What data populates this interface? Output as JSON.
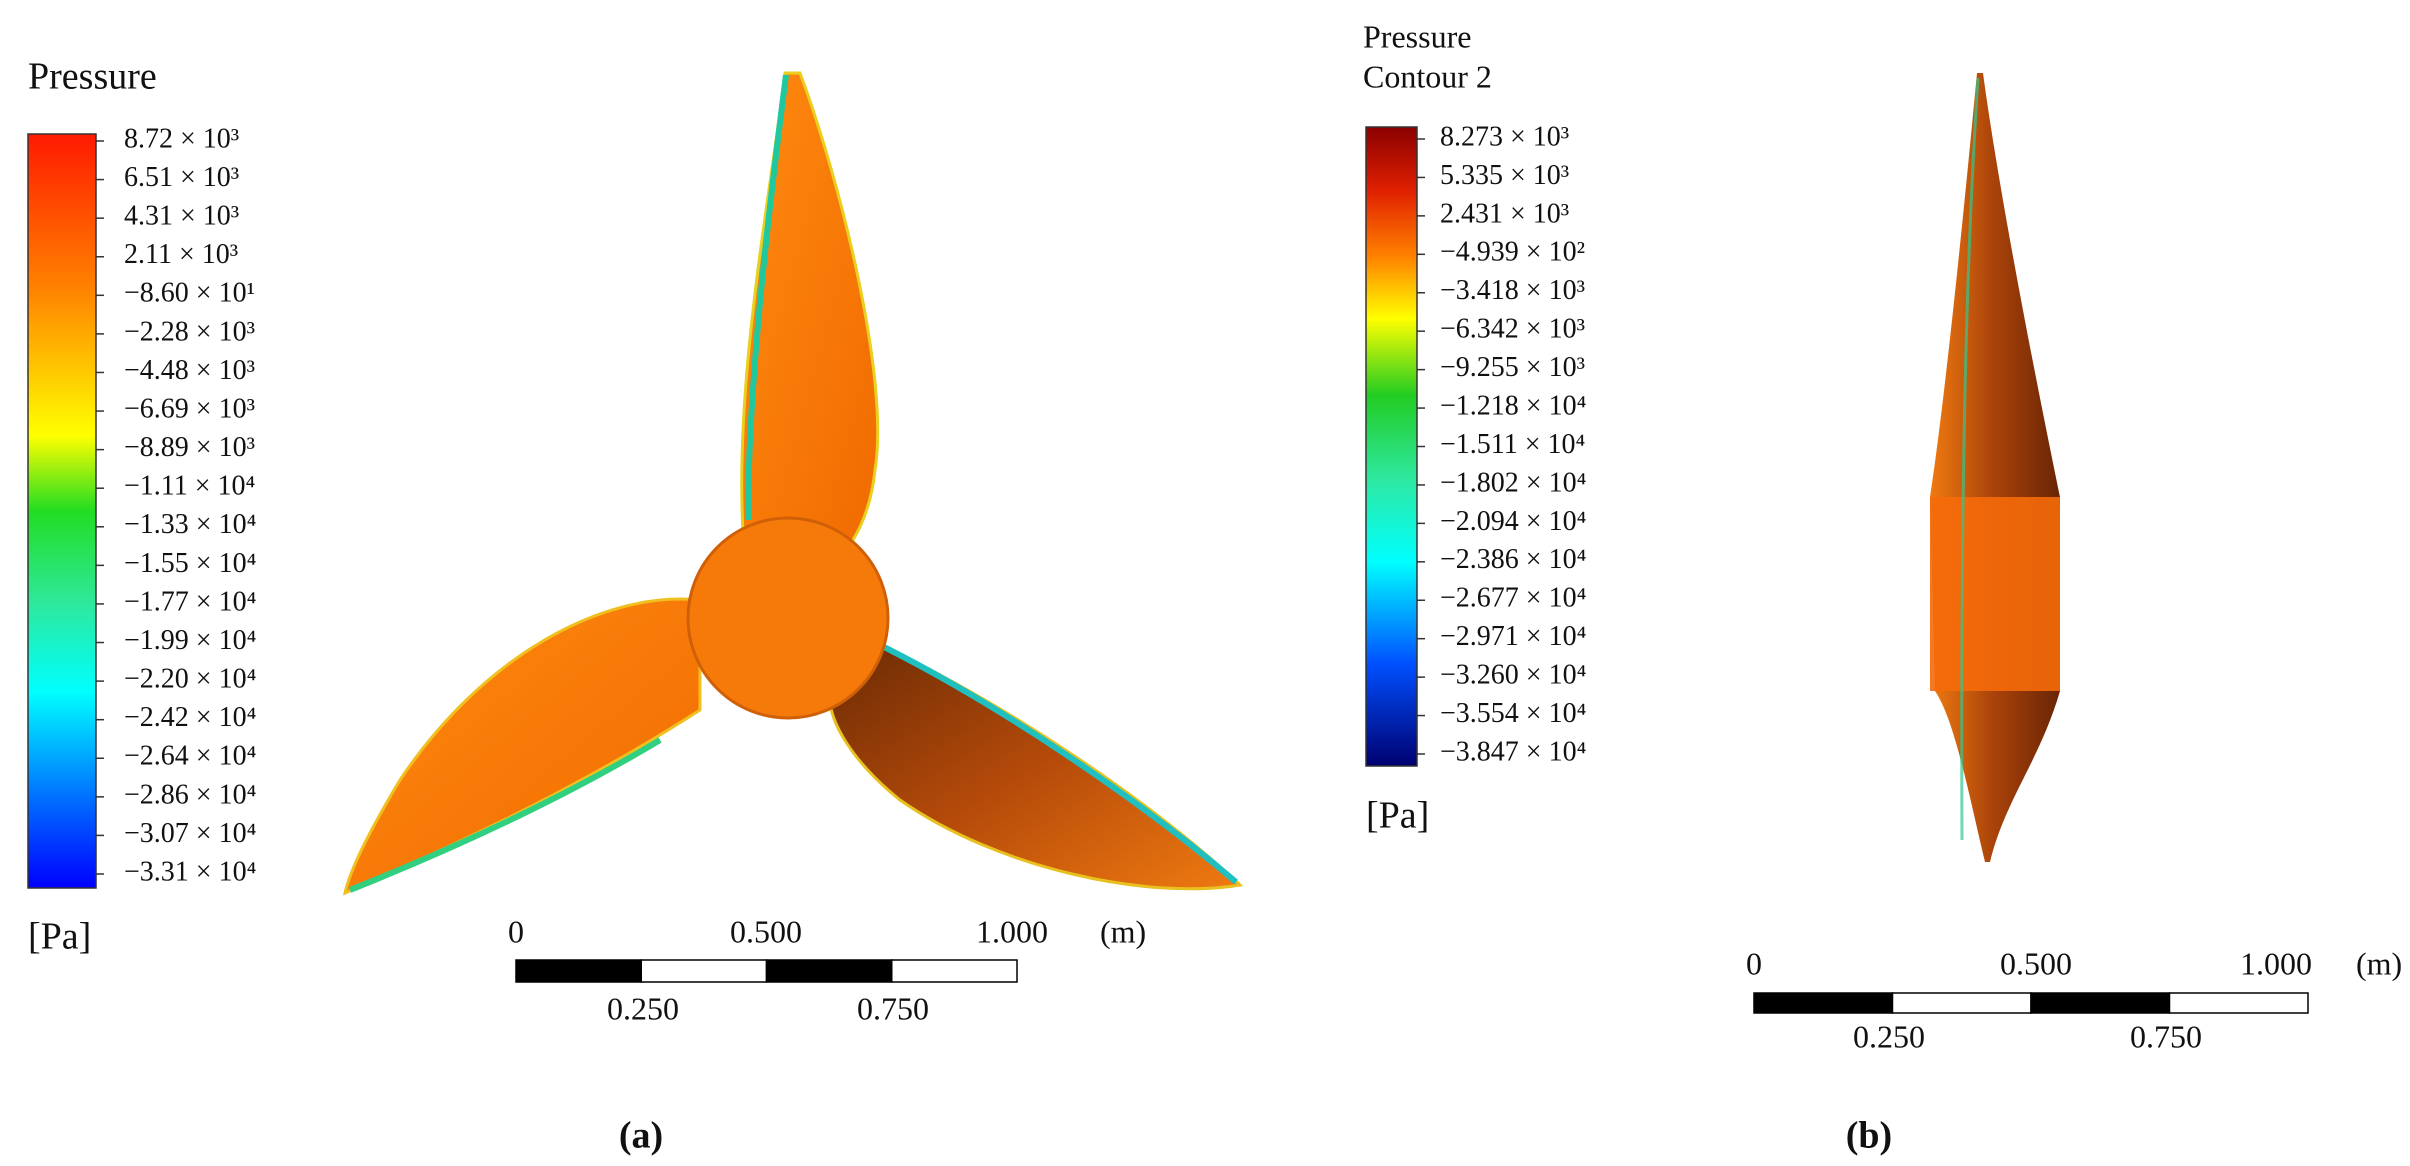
{
  "panels": [
    {
      "title": [
        "Pressure"
      ],
      "legend_labels": [
        "8.72 × 10³",
        "6.51 × 10³",
        "4.31 × 10³",
        "2.11 × 10³",
        "−8.60 × 10¹",
        "−2.28 × 10³",
        "−4.48 × 10³",
        "−6.69 × 10³",
        "−8.89 × 10³",
        "−1.11 × 10⁴",
        "−1.33 × 10⁴",
        "−1.55 × 10⁴",
        "−1.77 × 10⁴",
        "−1.99 × 10⁴",
        "−2.20 × 10⁴",
        "−2.42 × 10⁴",
        "−2.64 × 10⁴",
        "−2.86 × 10⁴",
        "−3.07 × 10⁴",
        "−3.31 × 10⁴"
      ],
      "unit": "[Pa]",
      "scale_top": [
        "0",
        "0.500",
        "1.000",
        "(m)"
      ],
      "scale_bottom": [
        "0.250",
        "0.750"
      ],
      "caption": "(a)"
    },
    {
      "title": [
        "Pressure",
        "Contour 2"
      ],
      "legend_labels": [
        "8.273 × 10³",
        "5.335 × 10³",
        "2.431 × 10³",
        "−4.939 × 10²",
        "−3.418 × 10³",
        "−6.342 × 10³",
        "−9.255 × 10³",
        "−1.218 × 10⁴",
        "−1.511 × 10⁴",
        "−1.802 × 10⁴",
        "−2.094 × 10⁴",
        "−2.386 × 10⁴",
        "−2.677 × 10⁴",
        "−2.971 × 10⁴",
        "−3.260 × 10⁴",
        "−3.554 × 10⁴",
        "−3.847 × 10⁴"
      ],
      "unit": "[Pa]",
      "scale_top": [
        "0",
        "0.500",
        "1.000",
        "(m)"
      ],
      "scale_bottom": [
        "0.250",
        "0.750"
      ],
      "caption": "(b)"
    }
  ]
}
